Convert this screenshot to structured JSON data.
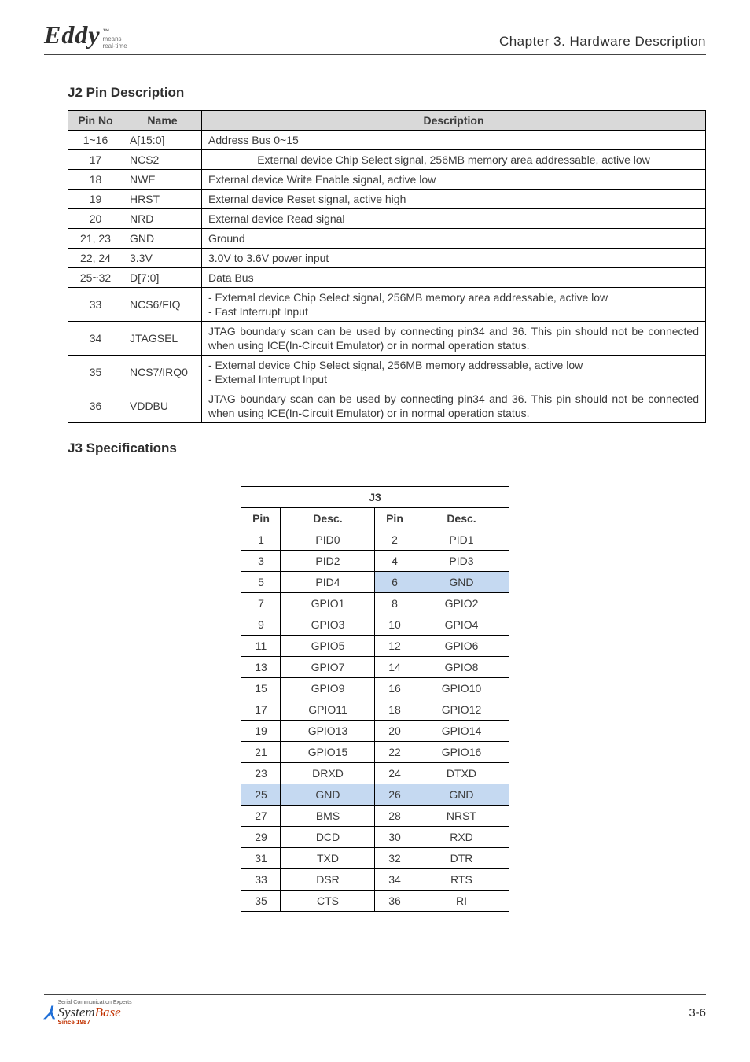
{
  "header": {
    "logo_word": "Eddy",
    "logo_tm": "™",
    "logo_means": "means",
    "logo_realtime": "real-time",
    "chapter": "Chapter 3. Hardware Description"
  },
  "j2": {
    "heading": "J2 Pin Description",
    "cols": [
      "Pin No",
      "Name",
      "Description"
    ],
    "rows": [
      {
        "pin": "1~16",
        "name": "A[15:0]",
        "desc": "Address Bus 0~15",
        "center": false
      },
      {
        "pin": "17",
        "name": "NCS2",
        "desc": "External device Chip Select signal, 256MB memory area addressable, active low",
        "center": true
      },
      {
        "pin": "18",
        "name": "NWE",
        "desc": "External device Write Enable signal, active low",
        "center": false
      },
      {
        "pin": "19",
        "name": "HRST",
        "desc": "External device Reset signal, active high",
        "center": false
      },
      {
        "pin": "20",
        "name": "NRD",
        "desc": "External device Read signal",
        "center": false
      },
      {
        "pin": "21, 23",
        "name": "GND",
        "desc": "Ground",
        "center": false
      },
      {
        "pin": "22, 24",
        "name": "3.3V",
        "desc": "3.0V to 3.6V power input",
        "center": false
      },
      {
        "pin": "25~32",
        "name": "D[7:0]",
        "desc": "Data Bus",
        "center": false
      },
      {
        "pin": "33",
        "name": "NCS6/FIQ",
        "desc": "- External device Chip Select signal, 256MB memory area addressable, active low\n- Fast Interrupt Input",
        "just": true
      },
      {
        "pin": "34",
        "name": "JTAGSEL",
        "desc": "JTAG boundary scan can be used by connecting pin34 and 36. This pin should not be connected when using ICE(In-Circuit Emulator) or in normal operation status.",
        "just": true
      },
      {
        "pin": "35",
        "name": "NCS7/IRQ0",
        "desc": "- External device Chip Select signal, 256MB memory addressable, active low\n- External Interrupt Input",
        "just": true
      },
      {
        "pin": "36",
        "name": "VDDBU",
        "desc": "JTAG boundary scan can be used by connecting pin34 and 36. This pin should not be connected when using ICE(In-Circuit Emulator) or in normal operation status.",
        "just": true
      }
    ]
  },
  "j3": {
    "heading": "J3 Specifications",
    "title": "J3",
    "head": [
      "Pin",
      "Desc.",
      "Pin",
      "Desc."
    ],
    "gnd_color": "#c5d9f1",
    "rows": [
      [
        {
          "v": "1"
        },
        {
          "v": "PID0"
        },
        {
          "v": "2"
        },
        {
          "v": "PID1"
        }
      ],
      [
        {
          "v": "3"
        },
        {
          "v": "PID2"
        },
        {
          "v": "4"
        },
        {
          "v": "PID3"
        }
      ],
      [
        {
          "v": "5"
        },
        {
          "v": "PID4"
        },
        {
          "v": "6",
          "gnd": true
        },
        {
          "v": "GND",
          "gnd": true
        }
      ],
      [
        {
          "v": "7"
        },
        {
          "v": "GPIO1"
        },
        {
          "v": "8"
        },
        {
          "v": "GPIO2"
        }
      ],
      [
        {
          "v": "9"
        },
        {
          "v": "GPIO3"
        },
        {
          "v": "10"
        },
        {
          "v": "GPIO4"
        }
      ],
      [
        {
          "v": "11"
        },
        {
          "v": "GPIO5"
        },
        {
          "v": "12"
        },
        {
          "v": "GPIO6"
        }
      ],
      [
        {
          "v": "13"
        },
        {
          "v": "GPIO7"
        },
        {
          "v": "14"
        },
        {
          "v": "GPIO8"
        }
      ],
      [
        {
          "v": "15"
        },
        {
          "v": "GPIO9"
        },
        {
          "v": "16"
        },
        {
          "v": "GPIO10"
        }
      ],
      [
        {
          "v": "17"
        },
        {
          "v": "GPIO11"
        },
        {
          "v": "18"
        },
        {
          "v": "GPIO12"
        }
      ],
      [
        {
          "v": "19"
        },
        {
          "v": "GPIO13"
        },
        {
          "v": "20"
        },
        {
          "v": "GPIO14"
        }
      ],
      [
        {
          "v": "21"
        },
        {
          "v": "GPIO15"
        },
        {
          "v": "22"
        },
        {
          "v": "GPIO16"
        }
      ],
      [
        {
          "v": "23"
        },
        {
          "v": "DRXD"
        },
        {
          "v": "24"
        },
        {
          "v": "DTXD"
        }
      ],
      [
        {
          "v": "25",
          "gnd": true
        },
        {
          "v": "GND",
          "gnd": true
        },
        {
          "v": "26",
          "gnd": true
        },
        {
          "v": "GND",
          "gnd": true
        }
      ],
      [
        {
          "v": "27"
        },
        {
          "v": "BMS"
        },
        {
          "v": "28"
        },
        {
          "v": "NRST"
        }
      ],
      [
        {
          "v": "29"
        },
        {
          "v": "DCD"
        },
        {
          "v": "30"
        },
        {
          "v": "RXD"
        }
      ],
      [
        {
          "v": "31"
        },
        {
          "v": "TXD"
        },
        {
          "v": "32"
        },
        {
          "v": "DTR"
        }
      ],
      [
        {
          "v": "33"
        },
        {
          "v": "DSR"
        },
        {
          "v": "34"
        },
        {
          "v": "RTS"
        }
      ],
      [
        {
          "v": "35"
        },
        {
          "v": "CTS"
        },
        {
          "v": "36"
        },
        {
          "v": "RI"
        }
      ]
    ]
  },
  "footer": {
    "sup": "Serial Communication Experts",
    "brand_system": "System",
    "brand_base": "Base",
    "since": "Since 1987",
    "page": "3-6"
  }
}
